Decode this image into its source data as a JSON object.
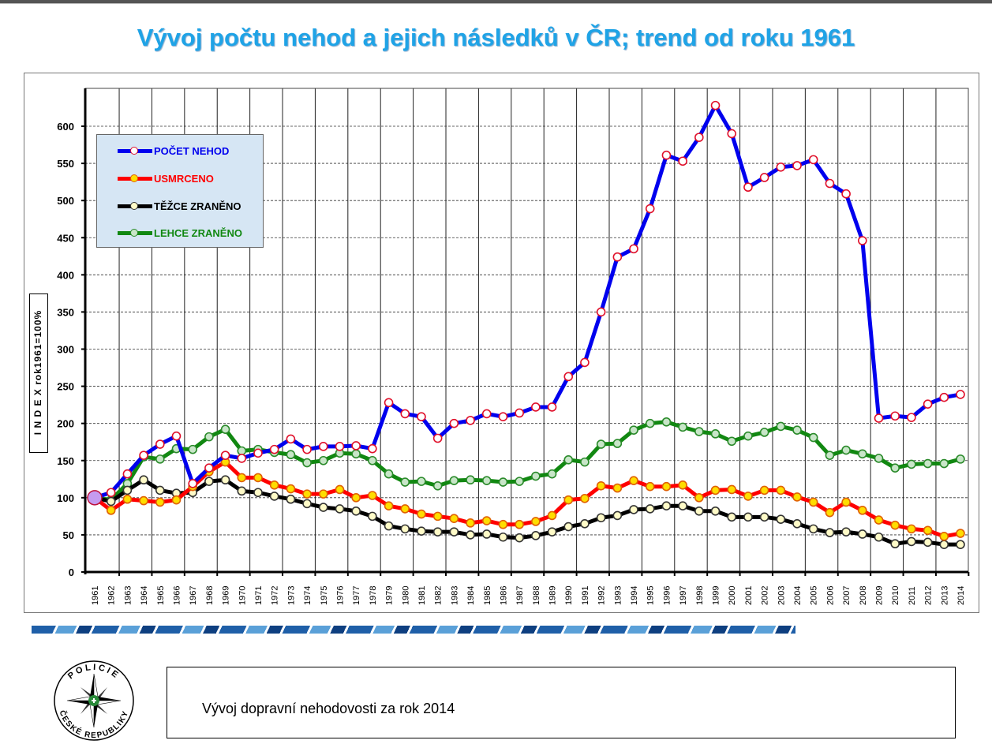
{
  "title": "Vývoj počtu nehod a jejich následků v ČR; trend od roku 1961",
  "footer": {
    "text": "Vývoj dopravní nehodovosti za rok 2014"
  },
  "logo": {
    "text_top": "POLICIE",
    "text_bottom": "ČESKÉ REPUBLIKY"
  },
  "chart_data": {
    "type": "line",
    "title": "Vývoj počtu nehod a jejich následků v ČR; trend od roku 1961",
    "xlabel": "",
    "ylabel": "I N D E X  rok1961=100%",
    "ylim": [
      0,
      650
    ],
    "yticks": [
      0,
      50,
      100,
      150,
      200,
      250,
      300,
      350,
      400,
      450,
      500,
      550,
      600
    ],
    "grid": true,
    "legend_position": "top-left",
    "x": [
      1961,
      1962,
      1963,
      1964,
      1965,
      1966,
      1967,
      1968,
      1969,
      1970,
      1971,
      1972,
      1973,
      1974,
      1975,
      1976,
      1977,
      1978,
      1979,
      1980,
      1981,
      1982,
      1983,
      1984,
      1985,
      1986,
      1987,
      1988,
      1989,
      1990,
      1991,
      1992,
      1993,
      1994,
      1995,
      1996,
      1997,
      1998,
      1999,
      2000,
      2001,
      2002,
      2003,
      2004,
      2005,
      2006,
      2007,
      2008,
      2009,
      2010,
      2011,
      2012,
      2013,
      2014
    ],
    "series": [
      {
        "name": "POČET NEHOD",
        "color": "#0000ee",
        "marker_fill": "#ffffff",
        "marker_edge": "#e0102a",
        "values": [
          100,
          107,
          132,
          157,
          172,
          183,
          119,
          140,
          157,
          153,
          160,
          165,
          179,
          165,
          169,
          169,
          170,
          166,
          228,
          213,
          209,
          180,
          200,
          204,
          213,
          209,
          214,
          222,
          222,
          263,
          282,
          350,
          424,
          435,
          489,
          561,
          553,
          585,
          628,
          590,
          518,
          531,
          545,
          547,
          555,
          523,
          509,
          446,
          207,
          210,
          208,
          226,
          235,
          239
        ]
      },
      {
        "name": "USMRCENO",
        "color": "#ff0000",
        "marker_fill": "#ffdd00",
        "marker_edge": "#e06000",
        "values": [
          100,
          83,
          98,
          96,
          94,
          97,
          115,
          135,
          148,
          127,
          127,
          117,
          112,
          105,
          105,
          111,
          100,
          103,
          89,
          85,
          78,
          75,
          72,
          66,
          69,
          64,
          64,
          68,
          76,
          97,
          99,
          116,
          113,
          123,
          115,
          115,
          117,
          100,
          110,
          111,
          102,
          110,
          110,
          101,
          94,
          80,
          94,
          83,
          70,
          63,
          58,
          56,
          48,
          52
        ]
      },
      {
        "name": "TĚŽCE ZRANĚNO",
        "color": "#000000",
        "marker_fill": "#fffbc8",
        "marker_edge": "#333333",
        "values": [
          100,
          95,
          110,
          124,
          110,
          106,
          107,
          122,
          124,
          109,
          107,
          102,
          98,
          92,
          87,
          85,
          82,
          75,
          62,
          58,
          55,
          54,
          54,
          50,
          51,
          47,
          46,
          49,
          54,
          61,
          65,
          73,
          76,
          84,
          85,
          89,
          89,
          82,
          82,
          74,
          74,
          74,
          71,
          65,
          58,
          53,
          54,
          51,
          47,
          38,
          41,
          40,
          37,
          37
        ]
      },
      {
        "name": "LEHCE ZRANĚNO",
        "color": "#118811",
        "marker_fill": "#c8e6c8",
        "marker_edge": "#2a8a2a",
        "values": [
          100,
          97,
          119,
          155,
          152,
          166,
          165,
          182,
          192,
          163,
          165,
          161,
          158,
          147,
          150,
          160,
          159,
          150,
          132,
          121,
          122,
          116,
          123,
          124,
          123,
          121,
          122,
          129,
          132,
          151,
          148,
          172,
          173,
          191,
          200,
          202,
          195,
          189,
          186,
          176,
          183,
          188,
          196,
          191,
          181,
          157,
          164,
          159,
          153,
          140,
          145,
          146,
          146,
          152
        ]
      }
    ]
  }
}
